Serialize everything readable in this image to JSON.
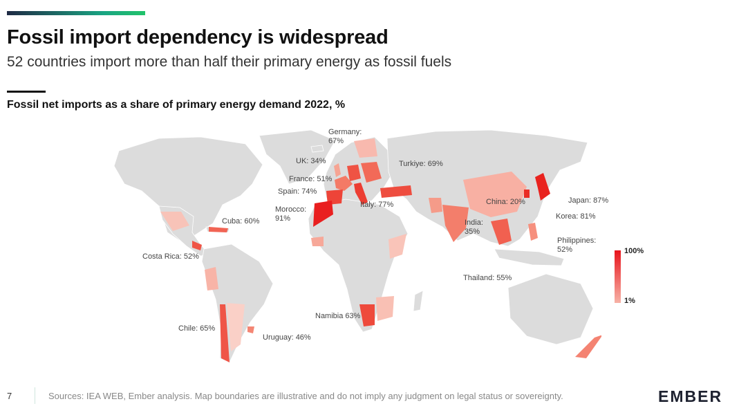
{
  "header": {
    "title": "Fossil import dependency is widespread",
    "subtitle": "52 countries import more than half their primary energy as fossil fuels"
  },
  "chart_title": "Fossil net imports as a share of primary energy demand 2022, %",
  "chart_data": {
    "type": "choropleth",
    "metric": "Fossil net imports as a share of primary energy demand 2022, %",
    "legend": {
      "max_label": "100%",
      "min_label": "1%",
      "colors": [
        "#e8141c",
        "#f7b2a6"
      ]
    },
    "labeled_countries": [
      {
        "name": "Germany",
        "value": 67,
        "label": "Germany:",
        "value_label": "67%"
      },
      {
        "name": "UK",
        "value": 34,
        "label": "UK: 34%"
      },
      {
        "name": "Turkiye",
        "value": 69,
        "label": "Turkiye: 69%"
      },
      {
        "name": "France",
        "value": 51,
        "label": "France: 51%"
      },
      {
        "name": "Spain",
        "value": 74,
        "label": "Spain: 74%"
      },
      {
        "name": "Italy",
        "value": 77,
        "label": "Italy: 77%"
      },
      {
        "name": "Morocco",
        "value": 91,
        "label": "Morocco:",
        "value_label": "91%"
      },
      {
        "name": "Cuba",
        "value": 60,
        "label": "Cuba: 60%"
      },
      {
        "name": "Costa Rica",
        "value": 52,
        "label": "Costa Rica: 52%"
      },
      {
        "name": "China",
        "value": 20,
        "label": "China: 20%"
      },
      {
        "name": "Japan",
        "value": 87,
        "label": "Japan: 87%"
      },
      {
        "name": "Korea",
        "value": 81,
        "label": "Korea: 81%"
      },
      {
        "name": "India",
        "value": 35,
        "label": "India:",
        "value_label": "35%"
      },
      {
        "name": "Philippines",
        "value": 52,
        "label": "Philippines:",
        "value_label": "52%"
      },
      {
        "name": "Thailand",
        "value": 55,
        "label": "Thailand: 55%"
      },
      {
        "name": "Namibia",
        "value": 63,
        "label": "Namibia 63%"
      },
      {
        "name": "Chile",
        "value": 65,
        "label": "Chile: 65%"
      },
      {
        "name": "Uruguay",
        "value": 46,
        "label": "Uruguay: 46%"
      }
    ]
  },
  "footer": {
    "page_number": "7",
    "source": "Sources: IEA WEB, Ember analysis. Map boundaries are illustrative and do not imply any judgment on legal status or sovereignty.",
    "logo": "EMBER"
  }
}
